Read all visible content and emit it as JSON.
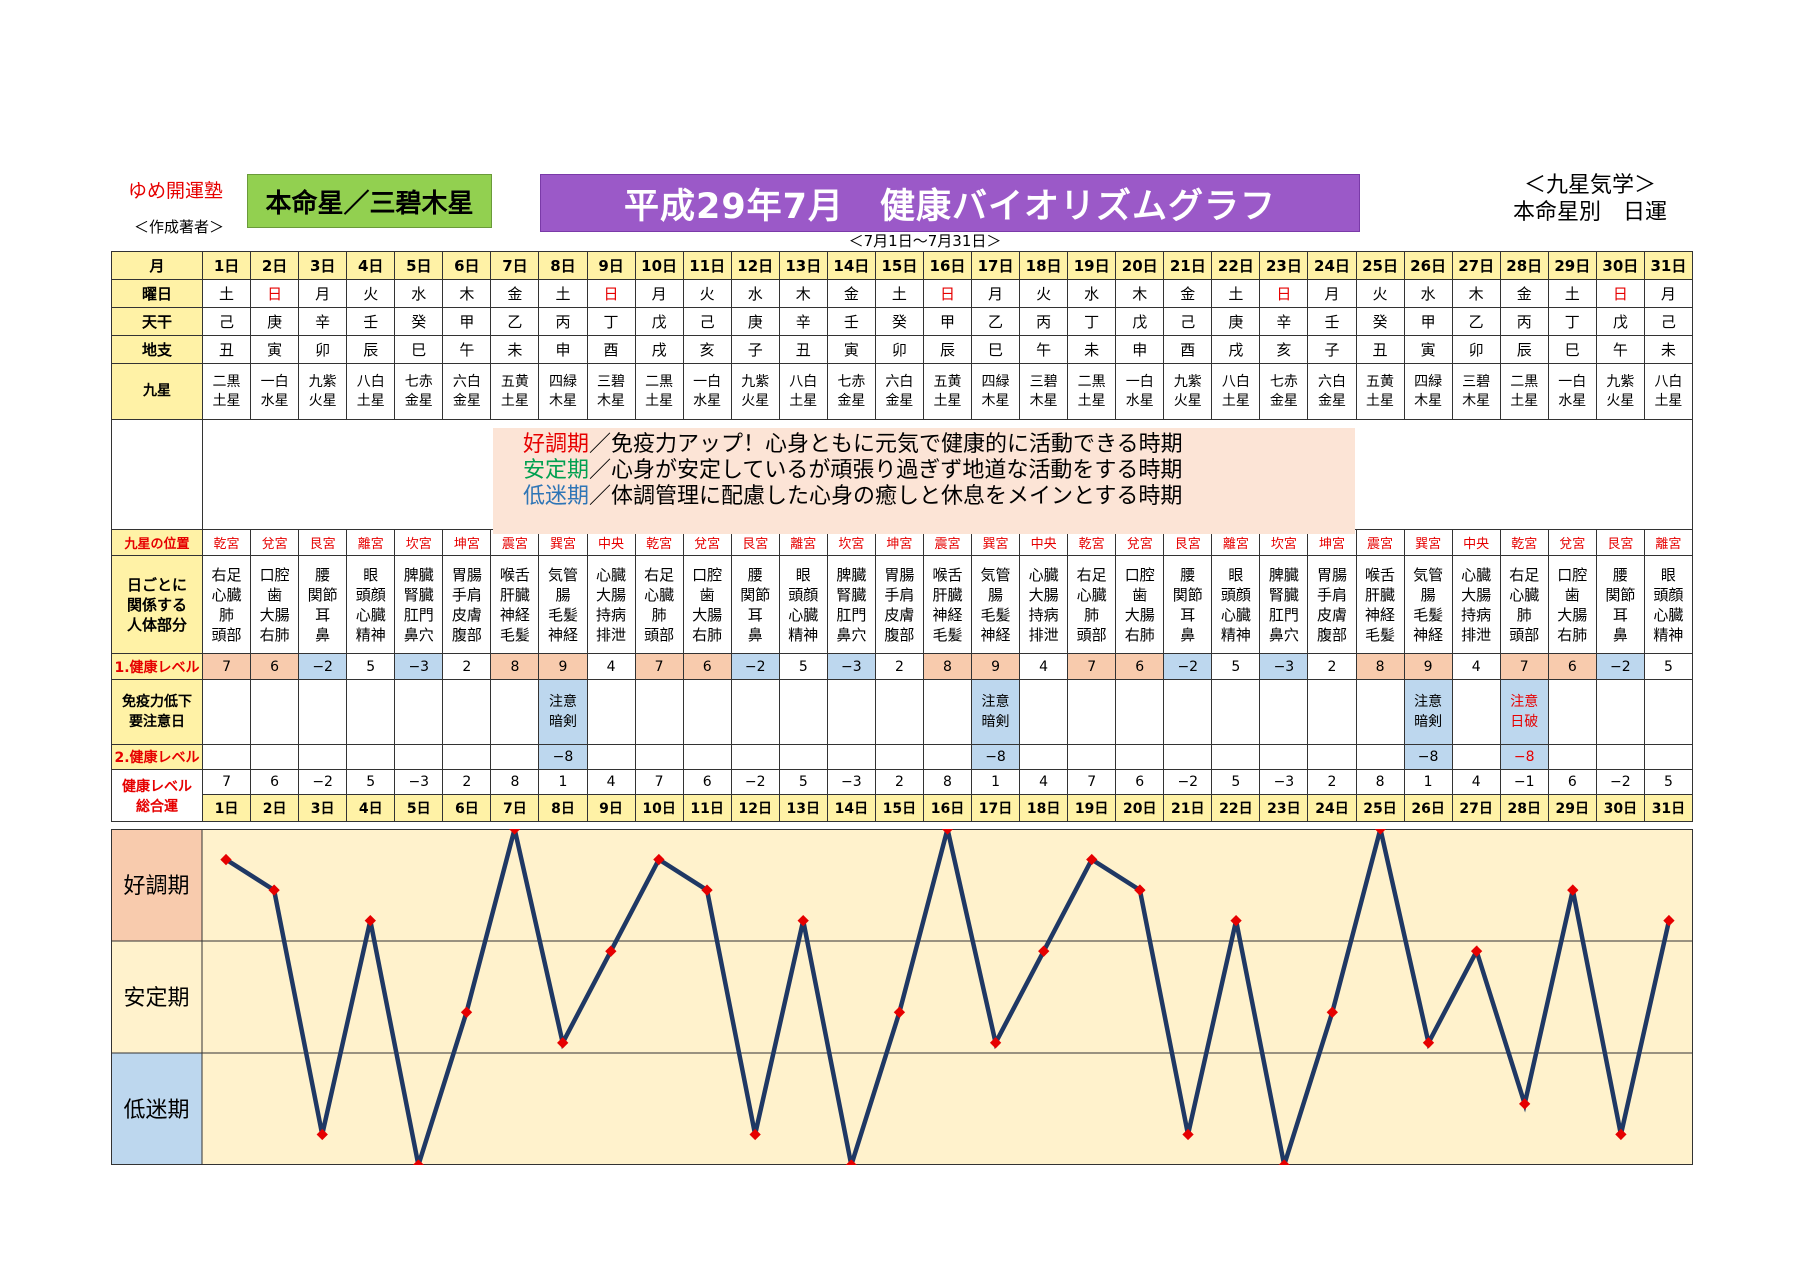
{
  "header": {
    "brand": "ゆめ開運塾",
    "author": "＜作成著者＞",
    "honmei": "本命星／三碧木星",
    "title": "平成29年7月　健康バイオリズムグラフ",
    "kyusei_line1": "＜九星気学＞",
    "kyusei_line2": "本命星別　日運",
    "range": "＜7月1日～7月31日＞"
  },
  "labels": {
    "month": "月",
    "weekday": "曜日",
    "tenkan": "天干",
    "chishi": "地支",
    "kyusei": "九星",
    "position": "九星の位置",
    "body1": "日ごとに",
    "body2": "関係する",
    "body3": "人体部分",
    "level1": "1.健康レベル",
    "immune1": "免疫力低下",
    "immune2": "要注意日",
    "level2": "2.健康レベル",
    "total1": "健康レベル",
    "total2": "総合運"
  },
  "legend": {
    "good_term": "好調期",
    "good_text": "／免疫力アップ！心身ともに元気で健康的に活動できる時期",
    "stable_term": "安定期",
    "stable_text": "／心身が安定しているが頑張り過ぎず地道な活動をする時期",
    "low_term": "低迷期",
    "low_text": "／体調管理に配慮した心身の癒しと休息をメインとする時期"
  },
  "days": [
    "1日",
    "2日",
    "3日",
    "4日",
    "5日",
    "6日",
    "7日",
    "8日",
    "9日",
    "10日",
    "11日",
    "12日",
    "13日",
    "14日",
    "15日",
    "16日",
    "17日",
    "18日",
    "19日",
    "20日",
    "21日",
    "22日",
    "23日",
    "24日",
    "25日",
    "26日",
    "27日",
    "28日",
    "29日",
    "30日",
    "31日"
  ],
  "weekdays": [
    "土",
    "日",
    "月",
    "火",
    "水",
    "木",
    "金",
    "土",
    "日",
    "月",
    "火",
    "水",
    "木",
    "金",
    "土",
    "日",
    "月",
    "火",
    "水",
    "木",
    "金",
    "土",
    "日",
    "月",
    "火",
    "水",
    "木",
    "金",
    "土",
    "日",
    "月"
  ],
  "tenkan": [
    "己",
    "庚",
    "辛",
    "壬",
    "癸",
    "甲",
    "乙",
    "丙",
    "丁",
    "戊",
    "己",
    "庚",
    "辛",
    "壬",
    "癸",
    "甲",
    "乙",
    "丙",
    "丁",
    "戊",
    "己",
    "庚",
    "辛",
    "壬",
    "癸",
    "甲",
    "乙",
    "丙",
    "丁",
    "戊",
    "己"
  ],
  "chishi": [
    "丑",
    "寅",
    "卯",
    "辰",
    "巳",
    "午",
    "未",
    "申",
    "酉",
    "戌",
    "亥",
    "子",
    "丑",
    "寅",
    "卯",
    "辰",
    "巳",
    "午",
    "未",
    "申",
    "酉",
    "戌",
    "亥",
    "子",
    "丑",
    "寅",
    "卯",
    "辰",
    "巳",
    "午",
    "未"
  ],
  "kyusei_top": [
    "二黒",
    "一白",
    "九紫",
    "八白",
    "七赤",
    "六白",
    "五黄",
    "四緑",
    "三碧",
    "二黒",
    "一白",
    "九紫",
    "八白",
    "七赤",
    "六白",
    "五黄",
    "四緑",
    "三碧",
    "二黒",
    "一白",
    "九紫",
    "八白",
    "七赤",
    "六白",
    "五黄",
    "四緑",
    "三碧",
    "二黒",
    "一白",
    "九紫",
    "八白"
  ],
  "kyusei_bottom": [
    "土星",
    "水星",
    "火星",
    "土星",
    "金星",
    "金星",
    "土星",
    "木星",
    "木星",
    "土星",
    "水星",
    "火星",
    "土星",
    "金星",
    "金星",
    "土星",
    "木星",
    "木星",
    "土星",
    "水星",
    "火星",
    "土星",
    "金星",
    "金星",
    "土星",
    "木星",
    "木星",
    "土星",
    "水星",
    "火星",
    "土星"
  ],
  "positions": [
    "乾宮",
    "兌宮",
    "艮宮",
    "離宮",
    "坎宮",
    "坤宮",
    "震宮",
    "巽宮",
    "中央",
    "乾宮",
    "兌宮",
    "艮宮",
    "離宮",
    "坎宮",
    "坤宮",
    "震宮",
    "巽宮",
    "中央",
    "乾宮",
    "兌宮",
    "艮宮",
    "離宮",
    "坎宮",
    "坤宮",
    "震宮",
    "巽宮",
    "中央",
    "乾宮",
    "兌宮",
    "艮宮",
    "離宮"
  ],
  "body_parts": [
    [
      "右足",
      "心臓",
      "肺",
      "頭部"
    ],
    [
      "口腔",
      "歯",
      "大腸",
      "右肺"
    ],
    [
      "腰",
      "関節",
      "耳",
      "鼻"
    ],
    [
      "眼",
      "頭顔",
      "心臓",
      "精神"
    ],
    [
      "脾臓",
      "腎臓",
      "肛門",
      "鼻穴"
    ],
    [
      "胃腸",
      "手肩",
      "皮膚",
      "腹部"
    ],
    [
      "喉舌",
      "肝臓",
      "神経",
      "毛髪"
    ],
    [
      "気管",
      "腸",
      "毛髪",
      "神経"
    ],
    [
      "心臓",
      "大腸",
      "持病",
      "排泄"
    ],
    [
      "右足",
      "心臓",
      "肺",
      "頭部"
    ],
    [
      "口腔",
      "歯",
      "大腸",
      "右肺"
    ],
    [
      "腰",
      "関節",
      "耳",
      "鼻"
    ],
    [
      "眼",
      "頭顔",
      "心臓",
      "精神"
    ],
    [
      "脾臓",
      "腎臓",
      "肛門",
      "鼻穴"
    ],
    [
      "胃腸",
      "手肩",
      "皮膚",
      "腹部"
    ],
    [
      "喉舌",
      "肝臓",
      "神経",
      "毛髪"
    ],
    [
      "気管",
      "腸",
      "毛髪",
      "神経"
    ],
    [
      "心臓",
      "大腸",
      "持病",
      "排泄"
    ],
    [
      "右足",
      "心臓",
      "肺",
      "頭部"
    ],
    [
      "口腔",
      "歯",
      "大腸",
      "右肺"
    ],
    [
      "腰",
      "関節",
      "耳",
      "鼻"
    ],
    [
      "眼",
      "頭顔",
      "心臓",
      "精神"
    ],
    [
      "脾臓",
      "腎臓",
      "肛門",
      "鼻穴"
    ],
    [
      "胃腸",
      "手肩",
      "皮膚",
      "腹部"
    ],
    [
      "喉舌",
      "肝臓",
      "神経",
      "毛髪"
    ],
    [
      "気管",
      "腸",
      "毛髪",
      "神経"
    ],
    [
      "心臓",
      "大腸",
      "持病",
      "排泄"
    ],
    [
      "右足",
      "心臓",
      "肺",
      "頭部"
    ],
    [
      "口腔",
      "歯",
      "大腸",
      "右肺"
    ],
    [
      "腰",
      "関節",
      "耳",
      "鼻"
    ],
    [
      "眼",
      "頭顔",
      "心臓",
      "精神"
    ]
  ],
  "level1": [
    "7",
    "6",
    "−2",
    "5",
    "−3",
    "2",
    "8",
    "9",
    "4",
    "7",
    "6",
    "−2",
    "5",
    "−3",
    "2",
    "8",
    "9",
    "4",
    "7",
    "6",
    "−2",
    "5",
    "−3",
    "2",
    "8",
    "9",
    "4",
    "7",
    "6",
    "−2",
    "5"
  ],
  "immune": [
    null,
    null,
    null,
    null,
    null,
    null,
    null,
    [
      "注意",
      "暗剣"
    ],
    null,
    null,
    null,
    null,
    null,
    null,
    null,
    null,
    [
      "注意",
      "暗剣"
    ],
    null,
    null,
    null,
    null,
    null,
    null,
    null,
    null,
    [
      "注意",
      "暗剣"
    ],
    null,
    [
      "注意",
      "日破"
    ],
    null,
    null,
    null
  ],
  "level2": [
    null,
    null,
    null,
    null,
    null,
    null,
    null,
    "−8",
    null,
    null,
    null,
    null,
    null,
    null,
    null,
    null,
    "−8",
    null,
    null,
    null,
    null,
    null,
    null,
    null,
    null,
    "−8",
    null,
    "−8",
    null,
    null,
    null
  ],
  "total_labels": [
    "7",
    "6",
    "−2",
    "5",
    "−3",
    "2",
    "8",
    "1",
    "4",
    "7",
    "6",
    "−2",
    "5",
    "−3",
    "2",
    "8",
    "1",
    "4",
    "7",
    "6",
    "−2",
    "5",
    "−3",
    "2",
    "8",
    "1",
    "4",
    "−1",
    "6",
    "−2",
    "5"
  ],
  "graph_labels": {
    "good": "好調期",
    "stable": "安定期",
    "low": "低迷期"
  },
  "colors": {
    "good_bg": "#f8cbad",
    "stable_bg": "#fff2cc",
    "low_bg": "#bdd7ee",
    "line": "#1f3864",
    "point": "#e60000",
    "sunday": "#e60000"
  },
  "chart_data": {
    "type": "line",
    "x": [
      "1日",
      "2日",
      "3日",
      "4日",
      "5日",
      "6日",
      "7日",
      "8日",
      "9日",
      "10日",
      "11日",
      "12日",
      "13日",
      "14日",
      "15日",
      "16日",
      "17日",
      "18日",
      "19日",
      "20日",
      "21日",
      "22日",
      "23日",
      "24日",
      "25日",
      "26日",
      "27日",
      "28日",
      "29日",
      "30日",
      "31日"
    ],
    "values": [
      7,
      6,
      -2,
      5,
      -3,
      2,
      8,
      1,
      4,
      7,
      6,
      -2,
      5,
      -3,
      2,
      8,
      1,
      4,
      7,
      6,
      -2,
      5,
      -3,
      2,
      8,
      1,
      4,
      -1,
      6,
      -2,
      5
    ],
    "bands": [
      "好調期",
      "安定期",
      "低迷期"
    ],
    "ylim": [
      -3,
      8
    ]
  }
}
